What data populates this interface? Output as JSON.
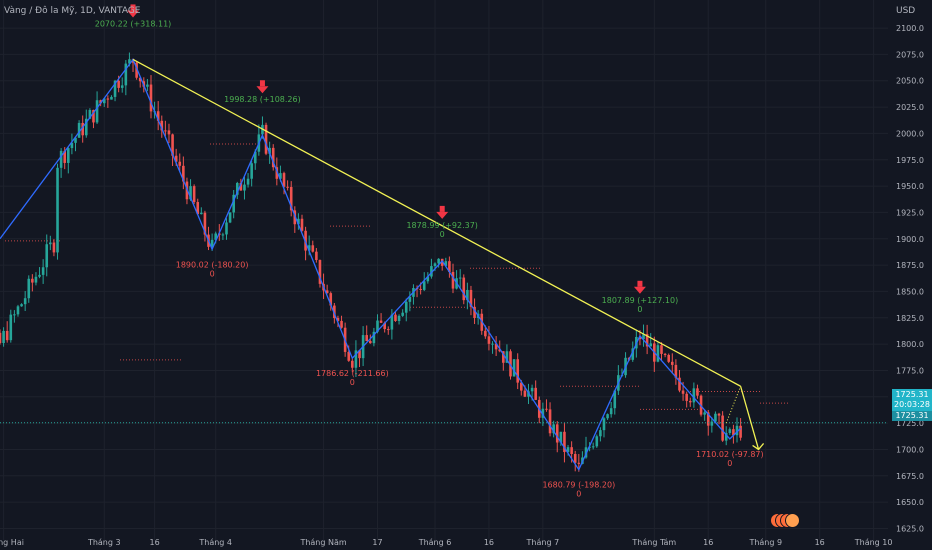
{
  "header": {
    "symbol": "Vàng / Đô la Mỹ, 1D, VANTAGE",
    "currency": "USD"
  },
  "price_tag": {
    "price": "1725.31",
    "countdown": "20:03:28",
    "current": "1725.31"
  },
  "colors": {
    "background": "#131722",
    "up": "#26a69a",
    "down": "#ef5350",
    "zigzag": "#2f6bff",
    "trendline": "#f2f254",
    "arrow": "#f23645",
    "label_high": "#4caf50",
    "label_low": "#ef5350",
    "current_line": "#26a69a"
  },
  "chart_data": {
    "type": "candlestick",
    "ylim": [
      1615,
      2120
    ],
    "yticks": [
      1625,
      1650,
      1675,
      1700,
      1725,
      1750,
      1775,
      1800,
      1825,
      1850,
      1875,
      1900,
      1925,
      1950,
      1975,
      2000,
      2025,
      2050,
      2075,
      2100
    ],
    "x_labels": [
      "Tháng Hai",
      "Tháng 3",
      "16",
      "Tháng 4",
      "Tháng Năm",
      "17",
      "Tháng 6",
      "16",
      "Tháng 7",
      "Tháng Tám",
      "16",
      "Tháng 9",
      "16",
      "Tháng 10"
    ],
    "x_label_days": [
      1,
      29,
      43,
      60,
      90,
      105,
      121,
      136,
      151,
      182,
      197,
      213,
      228,
      243
    ],
    "zigzag": [
      {
        "day": 0,
        "price": 1900
      },
      {
        "day": 37,
        "price": 2070.22
      },
      {
        "day": 59,
        "price": 1890.02
      },
      {
        "day": 73,
        "price": 1998.28
      },
      {
        "day": 98,
        "price": 1786.62
      },
      {
        "day": 123,
        "price": 1878.99
      },
      {
        "day": 161,
        "price": 1680.79
      },
      {
        "day": 178,
        "price": 1807.89
      },
      {
        "day": 203,
        "price": 1710.02
      },
      {
        "day": 206,
        "price": 1720
      }
    ],
    "trendline": [
      {
        "day": 37,
        "price": 2070.22
      },
      {
        "day": 206,
        "price": 1760
      }
    ],
    "forecast": [
      {
        "day": 206,
        "price": 1760
      },
      {
        "day": 211,
        "price": 1700
      }
    ],
    "forecast_dotted": [
      {
        "day": 202,
        "price": 1725
      },
      {
        "day": 206,
        "price": 1760
      }
    ],
    "current_price": 1725.31,
    "pivot_labels": [
      {
        "day": 37,
        "price": 2070.22,
        "text": "2070.22 (+318.11)",
        "sub": "",
        "kind": "high",
        "arrow": true
      },
      {
        "day": 73,
        "price": 1998.28,
        "text": "1998.28 (+108.26)",
        "sub": "",
        "kind": "high",
        "arrow": true
      },
      {
        "day": 123,
        "price": 1878.99,
        "text": "1878.99 (+92.37)",
        "sub": "0",
        "kind": "high",
        "arrow": true
      },
      {
        "day": 178,
        "price": 1807.89,
        "text": "1807.89 (+127.10)",
        "sub": "0",
        "kind": "high",
        "arrow": true
      },
      {
        "day": 59,
        "price": 1890.02,
        "text": "1890.02 (-180.20)",
        "sub": "0",
        "kind": "low",
        "arrow": false
      },
      {
        "day": 98,
        "price": 1786.62,
        "text": "1786.62 (-211.66)",
        "sub": "0",
        "kind": "low",
        "arrow": false
      },
      {
        "day": 161,
        "price": 1680.79,
        "text": "1680.79 (-198.20)",
        "sub": "0",
        "kind": "low",
        "arrow": false
      },
      {
        "day": 203,
        "price": 1710.02,
        "text": "1710.02 (-97.87)",
        "sub": "0",
        "kind": "low",
        "arrow": false
      }
    ]
  }
}
